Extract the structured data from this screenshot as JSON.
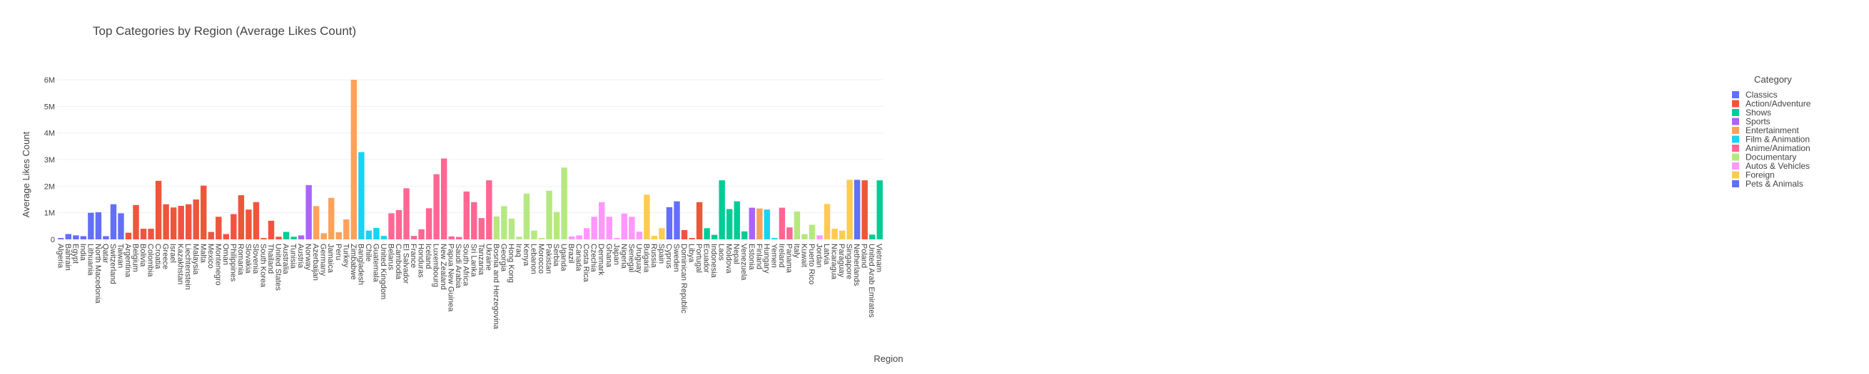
{
  "chart_data": {
    "type": "bar",
    "title": "Top Categories by Region (Average Likes Count)",
    "xlabel": "Region",
    "ylabel": "Average Likes Count",
    "ylim": [
      0,
      6000000
    ],
    "yticks": [
      {
        "value": 0,
        "label": "0"
      },
      {
        "value": 1000000,
        "label": "1M"
      },
      {
        "value": 2000000,
        "label": "2M"
      },
      {
        "value": 3000000,
        "label": "3M"
      },
      {
        "value": 4000000,
        "label": "4M"
      },
      {
        "value": 5000000,
        "label": "5M"
      },
      {
        "value": 6000000,
        "label": "6M"
      }
    ],
    "legend_title": "Category",
    "legend_position": "right",
    "series": [
      {
        "name": "Classics",
        "color": "#636efa"
      },
      {
        "name": "Action/Adventure",
        "color": "#EF553B"
      },
      {
        "name": "Shows",
        "color": "#00cc96"
      },
      {
        "name": "Sports",
        "color": "#ab63fa"
      },
      {
        "name": "Entertainment",
        "color": "#FFA15A"
      },
      {
        "name": "Film & Animation",
        "color": "#19d3f3"
      },
      {
        "name": "Anime/Animation",
        "color": "#FF6692"
      },
      {
        "name": "Documentary",
        "color": "#B6E880"
      },
      {
        "name": "Autos & Vehicles",
        "color": "#FF97FF"
      },
      {
        "name": "Foreign",
        "color": "#FECB52"
      },
      {
        "name": "Pets & Animals",
        "color": "#636efa"
      }
    ],
    "bars": [
      {
        "region": "Algeria",
        "category": "Classics",
        "value": 50000
      },
      {
        "region": "Bahrain",
        "category": "Classics",
        "value": 200000
      },
      {
        "region": "Egypt",
        "category": "Classics",
        "value": 150000
      },
      {
        "region": "India",
        "category": "Classics",
        "value": 120000
      },
      {
        "region": "Lithuania",
        "category": "Classics",
        "value": 1000000
      },
      {
        "region": "North Macedonia",
        "category": "Classics",
        "value": 1020000
      },
      {
        "region": "Qatar",
        "category": "Classics",
        "value": 120000
      },
      {
        "region": "Switzerland",
        "category": "Classics",
        "value": 1320000
      },
      {
        "region": "Taiwan",
        "category": "Classics",
        "value": 980000
      },
      {
        "region": "Argentina",
        "category": "Action/Adventure",
        "value": 250000
      },
      {
        "region": "Belgium",
        "category": "Action/Adventure",
        "value": 1290000
      },
      {
        "region": "Bolivia",
        "category": "Action/Adventure",
        "value": 400000
      },
      {
        "region": "Colombia",
        "category": "Action/Adventure",
        "value": 400000
      },
      {
        "region": "Croatia",
        "category": "Action/Adventure",
        "value": 2200000
      },
      {
        "region": "Greece",
        "category": "Action/Adventure",
        "value": 1320000
      },
      {
        "region": "Israel",
        "category": "Action/Adventure",
        "value": 1200000
      },
      {
        "region": "Kazakhstan",
        "category": "Action/Adventure",
        "value": 1260000
      },
      {
        "region": "Liechtenstein",
        "category": "Action/Adventure",
        "value": 1320000
      },
      {
        "region": "Malaysia",
        "category": "Action/Adventure",
        "value": 1500000
      },
      {
        "region": "Malta",
        "category": "Action/Adventure",
        "value": 2020000
      },
      {
        "region": "Mexico",
        "category": "Action/Adventure",
        "value": 280000
      },
      {
        "region": "Montenegro",
        "category": "Action/Adventure",
        "value": 850000
      },
      {
        "region": "Oman",
        "category": "Action/Adventure",
        "value": 200000
      },
      {
        "region": "Philippines",
        "category": "Action/Adventure",
        "value": 950000
      },
      {
        "region": "Romania",
        "category": "Action/Adventure",
        "value": 1660000
      },
      {
        "region": "Slovakia",
        "category": "Action/Adventure",
        "value": 1120000
      },
      {
        "region": "Slovenia",
        "category": "Action/Adventure",
        "value": 1400000
      },
      {
        "region": "South Korea",
        "category": "Action/Adventure",
        "value": 50000
      },
      {
        "region": "Thailand",
        "category": "Action/Adventure",
        "value": 700000
      },
      {
        "region": "United States",
        "category": "Action/Adventure",
        "value": 100000
      },
      {
        "region": "Australia",
        "category": "Shows",
        "value": 280000
      },
      {
        "region": "Tunisia",
        "category": "Shows",
        "value": 100000
      },
      {
        "region": "Austria",
        "category": "Sports",
        "value": 150000
      },
      {
        "region": "Norway",
        "category": "Sports",
        "value": 2040000
      },
      {
        "region": "Azerbaijan",
        "category": "Entertainment",
        "value": 1250000
      },
      {
        "region": "Germany",
        "category": "Entertainment",
        "value": 230000
      },
      {
        "region": "Jamaica",
        "category": "Entertainment",
        "value": 1560000
      },
      {
        "region": "Peru",
        "category": "Entertainment",
        "value": 270000
      },
      {
        "region": "Turkey",
        "category": "Entertainment",
        "value": 750000
      },
      {
        "region": "Zimbabwe",
        "category": "Entertainment",
        "value": 6000000
      },
      {
        "region": "Bangladesh",
        "category": "Film & Animation",
        "value": 3280000
      },
      {
        "region": "Chile",
        "category": "Film & Animation",
        "value": 330000
      },
      {
        "region": "Guatemala",
        "category": "Film & Animation",
        "value": 430000
      },
      {
        "region": "United Kingdom",
        "category": "Film & Animation",
        "value": 130000
      },
      {
        "region": "Belarus",
        "category": "Anime/Animation",
        "value": 980000
      },
      {
        "region": "Cambodia",
        "category": "Anime/Animation",
        "value": 1100000
      },
      {
        "region": "El Salvador",
        "category": "Anime/Animation",
        "value": 1920000
      },
      {
        "region": "France",
        "category": "Anime/Animation",
        "value": 130000
      },
      {
        "region": "Honduras",
        "category": "Anime/Animation",
        "value": 380000
      },
      {
        "region": "Iceland",
        "category": "Anime/Animation",
        "value": 1170000
      },
      {
        "region": "Luxembourg",
        "category": "Anime/Animation",
        "value": 2450000
      },
      {
        "region": "New Zealand",
        "category": "Anime/Animation",
        "value": 3040000
      },
      {
        "region": "Papua New Guinea",
        "category": "Anime/Animation",
        "value": 110000
      },
      {
        "region": "Saudi Arabia",
        "category": "Anime/Animation",
        "value": 90000
      },
      {
        "region": "South Africa",
        "category": "Anime/Animation",
        "value": 1800000
      },
      {
        "region": "Sri Lanka",
        "category": "Anime/Animation",
        "value": 1400000
      },
      {
        "region": "Tanzania",
        "category": "Anime/Animation",
        "value": 800000
      },
      {
        "region": "Ukraine",
        "category": "Anime/Animation",
        "value": 2220000
      },
      {
        "region": "Bosnia and Herzegovina",
        "category": "Documentary",
        "value": 860000
      },
      {
        "region": "Georgia",
        "category": "Documentary",
        "value": 1250000
      },
      {
        "region": "Hong Kong",
        "category": "Documentary",
        "value": 780000
      },
      {
        "region": "Iraq",
        "category": "Documentary",
        "value": 100000
      },
      {
        "region": "Kenya",
        "category": "Documentary",
        "value": 1720000
      },
      {
        "region": "Lebanon",
        "category": "Documentary",
        "value": 330000
      },
      {
        "region": "Morocco",
        "category": "Documentary",
        "value": 50000
      },
      {
        "region": "Pakistan",
        "category": "Documentary",
        "value": 1830000
      },
      {
        "region": "Serbia",
        "category": "Documentary",
        "value": 1030000
      },
      {
        "region": "Uganda",
        "category": "Documentary",
        "value": 2700000
      },
      {
        "region": "Brazil",
        "category": "Autos & Vehicles",
        "value": 110000
      },
      {
        "region": "Canada",
        "category": "Autos & Vehicles",
        "value": 150000
      },
      {
        "region": "Costa Rica",
        "category": "Autos & Vehicles",
        "value": 420000
      },
      {
        "region": "Czechia",
        "category": "Autos & Vehicles",
        "value": 850000
      },
      {
        "region": "Denmark",
        "category": "Autos & Vehicles",
        "value": 1400000
      },
      {
        "region": "Ghana",
        "category": "Autos & Vehicles",
        "value": 850000
      },
      {
        "region": "Japan",
        "category": "Autos & Vehicles",
        "value": 50000
      },
      {
        "region": "Nigeria",
        "category": "Autos & Vehicles",
        "value": 970000
      },
      {
        "region": "Senegal",
        "category": "Autos & Vehicles",
        "value": 850000
      },
      {
        "region": "Uruguay",
        "category": "Autos & Vehicles",
        "value": 290000
      },
      {
        "region": "Bulgaria",
        "category": "Foreign",
        "value": 1680000
      },
      {
        "region": "Russia",
        "category": "Foreign",
        "value": 130000
      },
      {
        "region": "Spain",
        "category": "Foreign",
        "value": 420000
      },
      {
        "region": "Cyprus",
        "category": "Pets & Animals",
        "value": 1210000
      },
      {
        "region": "Sweden",
        "category": "Pets & Animals",
        "value": 1430000
      },
      {
        "region": "Dominican Republic",
        "category": "Action/Adventure",
        "value": 350000
      },
      {
        "region": "Libya",
        "category": "Action/Adventure",
        "value": 50000
      },
      {
        "region": "Portugal",
        "category": "Action/Adventure",
        "value": 1400000
      },
      {
        "region": "Ecuador",
        "category": "Shows",
        "value": 420000
      },
      {
        "region": "Indonesia",
        "category": "Shows",
        "value": 170000
      },
      {
        "region": "Laos",
        "category": "Shows",
        "value": 2220000
      },
      {
        "region": "Moldova",
        "category": "Shows",
        "value": 1140000
      },
      {
        "region": "Nepal",
        "category": "Shows",
        "value": 1430000
      },
      {
        "region": "Venezuela",
        "category": "Shows",
        "value": 300000
      },
      {
        "region": "Estonia",
        "category": "Sports",
        "value": 1190000
      },
      {
        "region": "Finland",
        "category": "Entertainment",
        "value": 1160000
      },
      {
        "region": "Hungary",
        "category": "Film & Animation",
        "value": 1120000
      },
      {
        "region": "Yemen",
        "category": "Film & Animation",
        "value": 50000
      },
      {
        "region": "Ireland",
        "category": "Anime/Animation",
        "value": 1190000
      },
      {
        "region": "Panama",
        "category": "Anime/Animation",
        "value": 450000
      },
      {
        "region": "Italy",
        "category": "Documentary",
        "value": 1050000
      },
      {
        "region": "Kuwait",
        "category": "Documentary",
        "value": 200000
      },
      {
        "region": "Puerto Rico",
        "category": "Documentary",
        "value": 550000
      },
      {
        "region": "Jordan",
        "category": "Autos & Vehicles",
        "value": 150000
      },
      {
        "region": "Latvia",
        "category": "Foreign",
        "value": 1330000
      },
      {
        "region": "Nicaragua",
        "category": "Foreign",
        "value": 400000
      },
      {
        "region": "Paraguay",
        "category": "Foreign",
        "value": 330000
      },
      {
        "region": "Singapore",
        "category": "Foreign",
        "value": 2240000
      },
      {
        "region": "Netherlands",
        "category": "Classics",
        "value": 2240000
      },
      {
        "region": "Poland",
        "category": "Action/Adventure",
        "value": 2220000
      },
      {
        "region": "United Arab Emirates",
        "category": "Shows",
        "value": 180000
      },
      {
        "region": "Vietnam",
        "category": "Shows",
        "value": 2220000
      }
    ]
  }
}
